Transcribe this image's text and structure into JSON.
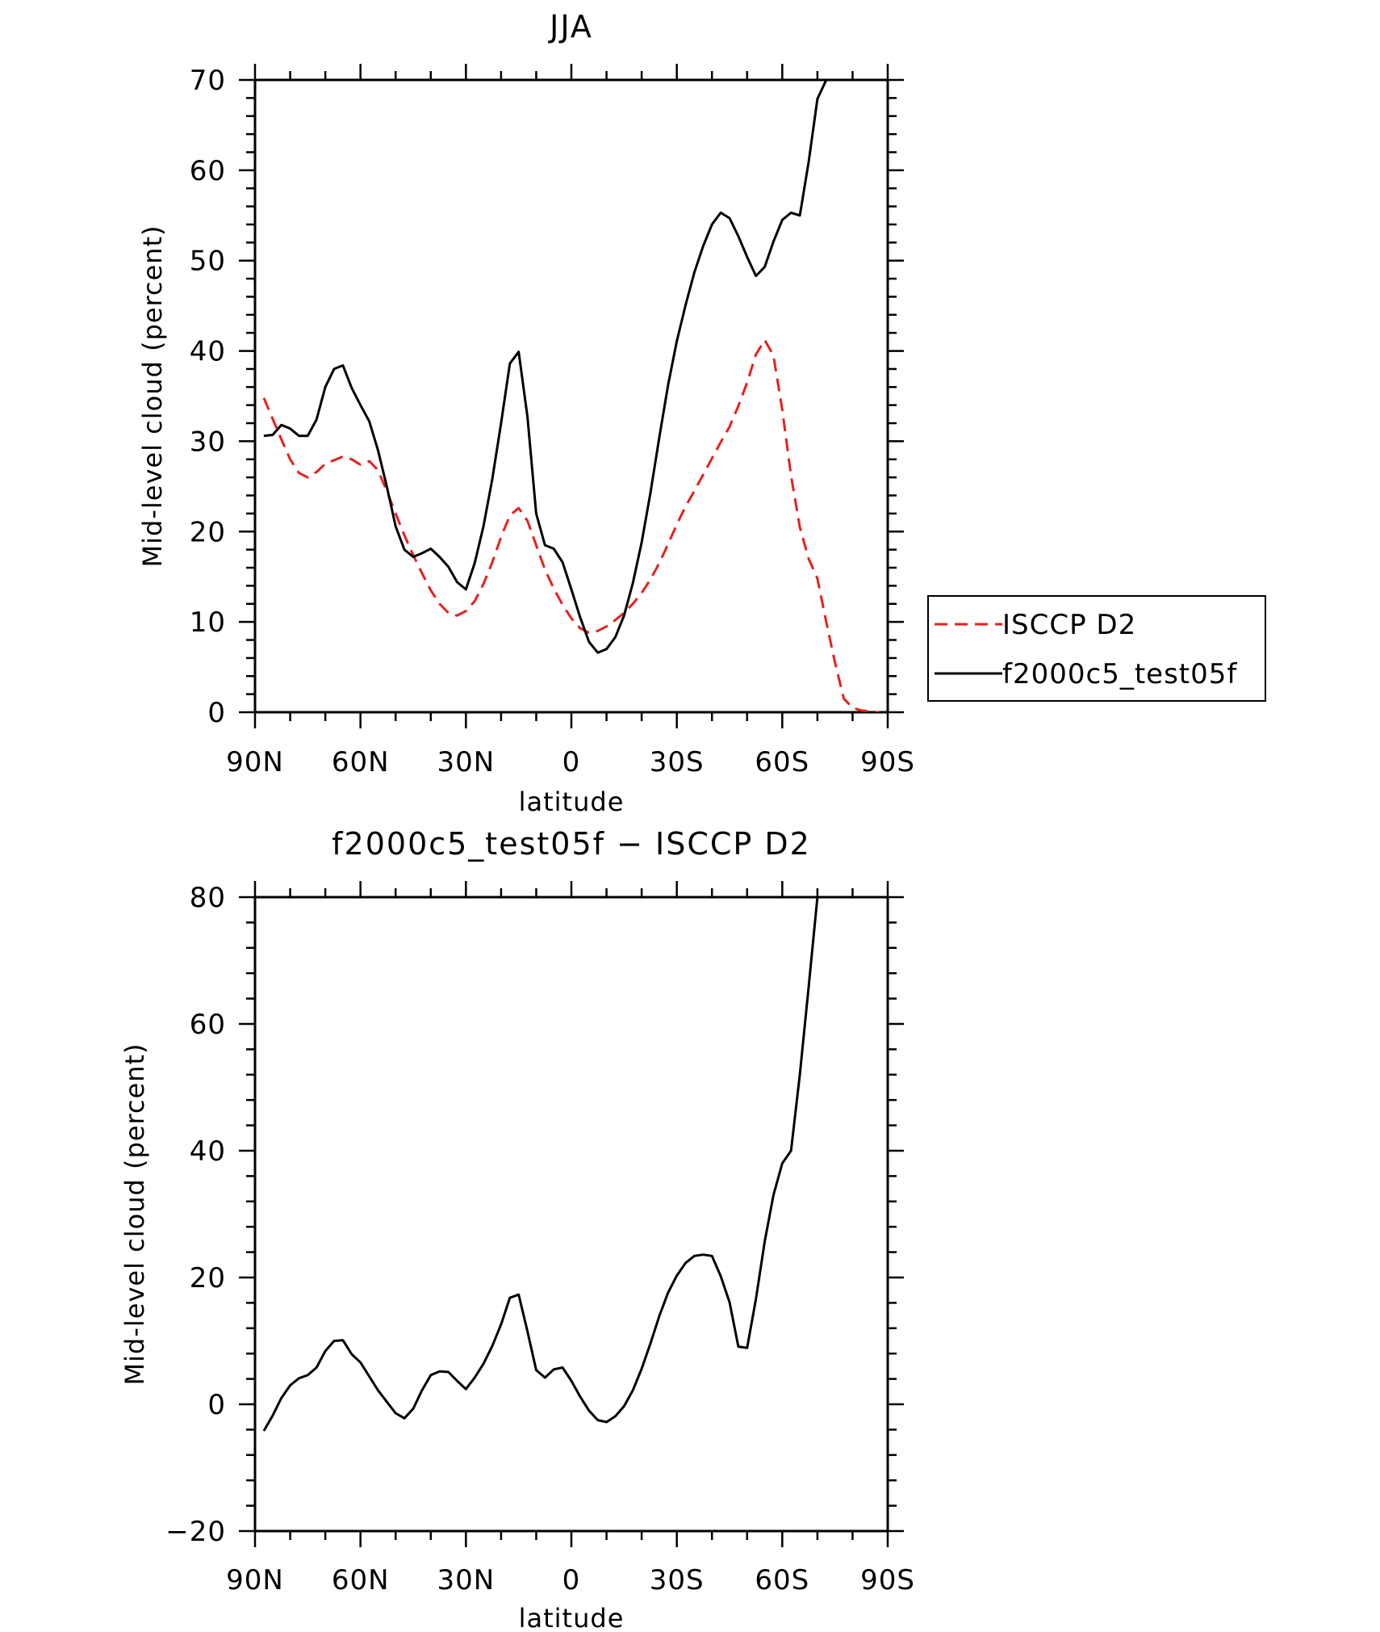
{
  "chart_data": [
    {
      "type": "line",
      "title": "JJA",
      "xlabel": "latitude",
      "ylabel": "Mid-level cloud (percent)",
      "xlim": [
        90,
        -90
      ],
      "ylim": [
        0,
        70
      ],
      "xticks": [
        {
          "value": 90,
          "label": "90N"
        },
        {
          "value": 60,
          "label": "60N"
        },
        {
          "value": 30,
          "label": "30N"
        },
        {
          "value": 0,
          "label": "0"
        },
        {
          "value": -30,
          "label": "30S"
        },
        {
          "value": -60,
          "label": "60S"
        },
        {
          "value": -90,
          "label": "90S"
        }
      ],
      "yticks": [
        0,
        10,
        20,
        30,
        40,
        50,
        60,
        70
      ],
      "yticklabels": [
        "0",
        "10",
        "20",
        "30",
        "40",
        "50",
        "60",
        "70"
      ],
      "legend": "outside-right",
      "series": [
        {
          "name": "ISCCP D2",
          "color": "#e8201c",
          "style": "dashed",
          "x": [
            87.5,
            85,
            82.5,
            80,
            77.5,
            75,
            72.5,
            70,
            67.5,
            65,
            62.5,
            60,
            57.5,
            55,
            52.5,
            50,
            47.5,
            45,
            42.5,
            40,
            37.5,
            35,
            32.5,
            30,
            27.5,
            25,
            22.5,
            20,
            17.5,
            15,
            12.5,
            10,
            7.5,
            5,
            2.5,
            0,
            -2.5,
            -5,
            -7.5,
            -10,
            -12.5,
            -15,
            -17.5,
            -20,
            -22.5,
            -25,
            -27.5,
            -30,
            -32.5,
            -35,
            -37.5,
            -40,
            -42.5,
            -45,
            -47.5,
            -50,
            -52.5,
            -55,
            -57.5,
            -60,
            -62.5,
            -65,
            -67.5,
            -70,
            -72.5,
            -75,
            -77.5,
            -80,
            -82.5,
            -85,
            -87.5
          ],
          "values": [
            34.8,
            32.5,
            30.2,
            28.0,
            26.5,
            26.0,
            26.6,
            27.5,
            27.9,
            28.3,
            28.0,
            27.4,
            27.8,
            26.8,
            24.5,
            22.0,
            19.6,
            17.4,
            15.4,
            13.5,
            12.0,
            11.0,
            10.7,
            11.2,
            12.3,
            14.2,
            16.6,
            19.4,
            21.8,
            22.6,
            21.2,
            18.5,
            15.8,
            13.7,
            11.9,
            10.4,
            9.3,
            8.8,
            9.0,
            9.5,
            10.2,
            11.0,
            12.0,
            13.2,
            14.7,
            16.5,
            18.6,
            20.8,
            22.8,
            24.5,
            26.3,
            28.1,
            29.9,
            31.6,
            33.9,
            36.5,
            39.6,
            41.2,
            39.5,
            33.5,
            26.2,
            20.5,
            17.0,
            14.8,
            10.0,
            5.5,
            1.5,
            0.5,
            0.2,
            0.1,
            0.0
          ]
        },
        {
          "name": "f2000c5_test05f",
          "color": "#000000",
          "style": "solid",
          "x": [
            87.5,
            85,
            82.5,
            80,
            77.5,
            75,
            72.5,
            70,
            67.5,
            65,
            62.5,
            60,
            57.5,
            55,
            52.5,
            50,
            47.5,
            45,
            42.5,
            40,
            37.5,
            35,
            32.5,
            30,
            27.5,
            25,
            22.5,
            20,
            17.5,
            15,
            12.5,
            10,
            7.5,
            5,
            2.5,
            0,
            -2.5,
            -5,
            -7.5,
            -10,
            -12.5,
            -15,
            -17.5,
            -20,
            -22.5,
            -25,
            -27.5,
            -30,
            -32.5,
            -35,
            -37.5,
            -40,
            -42.5,
            -45,
            -47.5,
            -50,
            -52.5,
            -55,
            -57.5,
            -60,
            -62.5,
            -65,
            -67.5,
            -70,
            -72.5,
            -75,
            -77.5,
            -80,
            -82.5,
            -85,
            -87.5
          ],
          "values": [
            30.6,
            30.7,
            31.8,
            31.4,
            30.6,
            30.6,
            32.4,
            36.0,
            38.0,
            38.4,
            35.9,
            34.0,
            32.2,
            29.0,
            25.0,
            20.6,
            18.0,
            17.2,
            17.6,
            18.1,
            17.2,
            16.1,
            14.4,
            13.6,
            16.5,
            20.6,
            25.8,
            32.0,
            38.6,
            39.9,
            32.7,
            22.0,
            18.5,
            18.1,
            16.6,
            13.6,
            10.5,
            7.8,
            6.6,
            7.0,
            8.3,
            10.7,
            14.3,
            18.8,
            24.3,
            30.4,
            36.2,
            41.1,
            45.1,
            48.7,
            51.6,
            54.0,
            55.3,
            54.7,
            52.7,
            50.4,
            48.3,
            49.3,
            52.1,
            54.5,
            55.3,
            55.0,
            60.9,
            67.9,
            70.0,
            70.0,
            70.0,
            70.0,
            70.0,
            70.0,
            70.0
          ]
        }
      ]
    },
    {
      "type": "line",
      "title": "f2000c5_test05f − ISCCP D2",
      "xlabel": "latitude",
      "ylabel": "Mid-level cloud (percent)",
      "xlim": [
        90,
        -90
      ],
      "ylim": [
        -20,
        80
      ],
      "xticks": [
        {
          "value": 90,
          "label": "90N"
        },
        {
          "value": 60,
          "label": "60N"
        },
        {
          "value": 30,
          "label": "30N"
        },
        {
          "value": 0,
          "label": "0"
        },
        {
          "value": -30,
          "label": "30S"
        },
        {
          "value": -60,
          "label": "60S"
        },
        {
          "value": -90,
          "label": "90S"
        }
      ],
      "yticks": [
        -20,
        0,
        20,
        40,
        60,
        80
      ],
      "yticklabels": [
        "−20",
        "0",
        "20",
        "40",
        "60",
        "80"
      ],
      "series": [
        {
          "name": "f2000c5_test05f − ISCCP D2",
          "color": "#000000",
          "style": "solid",
          "x": [
            87.5,
            85,
            82.5,
            80,
            77.5,
            75,
            72.5,
            70,
            67.5,
            65,
            62.5,
            60,
            57.5,
            55,
            52.5,
            50,
            47.5,
            45,
            42.5,
            40,
            37.5,
            35,
            32.5,
            30,
            27.5,
            25,
            22.5,
            20,
            17.5,
            15,
            12.5,
            10,
            7.5,
            5,
            2.5,
            0,
            -2.5,
            -5,
            -7.5,
            -10,
            -12.5,
            -15,
            -17.5,
            -20,
            -22.5,
            -25,
            -27.5,
            -30,
            -32.5,
            -35,
            -37.5,
            -40,
            -42.5,
            -45,
            -47.5,
            -50,
            -52.5,
            -55,
            -57.5,
            -60,
            -62.5,
            -65,
            -67.5,
            -70,
            -72.5,
            -75,
            -77.5,
            -80,
            -82.5,
            -85,
            -87.5
          ],
          "values": [
            -4.2,
            -1.8,
            1.0,
            3.0,
            4.1,
            4.6,
            5.8,
            8.4,
            10.0,
            10.1,
            7.9,
            6.6,
            4.4,
            2.2,
            0.4,
            -1.4,
            -2.2,
            -0.7,
            2.2,
            4.6,
            5.2,
            5.1,
            3.7,
            2.4,
            4.2,
            6.4,
            9.2,
            12.6,
            16.8,
            17.3,
            11.5,
            5.4,
            4.2,
            5.5,
            5.8,
            3.7,
            1.2,
            -1.0,
            -2.5,
            -2.8,
            -1.9,
            -0.3,
            2.2,
            5.6,
            9.6,
            13.9,
            17.6,
            20.3,
            22.3,
            23.4,
            23.6,
            23.4,
            20.2,
            16.1,
            9.1,
            8.9,
            16.6,
            25.7,
            33.0,
            38.0,
            40.0,
            52.0,
            65.8,
            80.0,
            80.0,
            80.0,
            80.0,
            80.0,
            80.0,
            80.0,
            80.0
          ]
        }
      ]
    }
  ]
}
